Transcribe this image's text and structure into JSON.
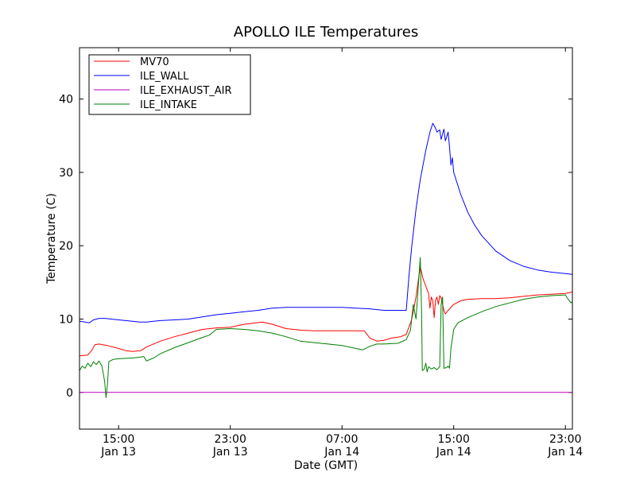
{
  "chart_data": {
    "type": "line",
    "title": "APOLLO ILE Temperatures",
    "xlabel": "Date (GMT)",
    "ylabel": "Temperature (C)",
    "x_unit": "hours since Jan 13 00:00 GMT",
    "xlim": [
      12.2,
      47.5
    ],
    "ylim": [
      -5,
      47
    ],
    "yticks": [
      0,
      10,
      20,
      30,
      40
    ],
    "xticks": [
      {
        "x": 15,
        "line1": "15:00",
        "line2": "Jan 13"
      },
      {
        "x": 23,
        "line1": "23:00",
        "line2": "Jan 13"
      },
      {
        "x": 31,
        "line1": "07:00",
        "line2": "Jan 14"
      },
      {
        "x": 39,
        "line1": "15:00",
        "line2": "Jan 14"
      },
      {
        "x": 47,
        "line1": "23:00",
        "line2": "Jan 14"
      }
    ],
    "legend_position": "top-left",
    "series": [
      {
        "name": "MV70",
        "color": "#ff0000",
        "points": [
          [
            12.2,
            5.0
          ],
          [
            12.8,
            5.1
          ],
          [
            13.1,
            5.8
          ],
          [
            13.3,
            6.5
          ],
          [
            13.6,
            6.6
          ],
          [
            14.2,
            6.4
          ],
          [
            15.0,
            6.0
          ],
          [
            15.5,
            5.7
          ],
          [
            16.0,
            5.6
          ],
          [
            16.6,
            5.7
          ],
          [
            17.0,
            6.2
          ],
          [
            18.0,
            7.0
          ],
          [
            19.0,
            7.6
          ],
          [
            20.0,
            8.1
          ],
          [
            21.0,
            8.6
          ],
          [
            22.0,
            8.8
          ],
          [
            23.0,
            8.9
          ],
          [
            24.0,
            9.3
          ],
          [
            25.3,
            9.6
          ],
          [
            26.0,
            9.3
          ],
          [
            27.0,
            8.7
          ],
          [
            28.0,
            8.5
          ],
          [
            29.0,
            8.4
          ],
          [
            30.0,
            8.4
          ],
          [
            31.0,
            8.4
          ],
          [
            32.0,
            8.4
          ],
          [
            32.6,
            8.4
          ],
          [
            33.0,
            7.4
          ],
          [
            33.5,
            7.0
          ],
          [
            34.0,
            7.1
          ],
          [
            34.5,
            7.4
          ],
          [
            35.2,
            7.6
          ],
          [
            35.6,
            7.9
          ],
          [
            36.0,
            10.0
          ],
          [
            36.3,
            13.0
          ],
          [
            36.6,
            17.2
          ],
          [
            36.8,
            15.5
          ],
          [
            37.0,
            14.5
          ],
          [
            37.2,
            13.5
          ],
          [
            37.3,
            11.5
          ],
          [
            37.4,
            13.0
          ],
          [
            37.5,
            12.5
          ],
          [
            37.6,
            10.2
          ],
          [
            37.7,
            12.6
          ],
          [
            37.8,
            13.0
          ],
          [
            37.9,
            12.0
          ],
          [
            38.0,
            13.2
          ],
          [
            38.1,
            12.9
          ],
          [
            38.3,
            11.2
          ],
          [
            38.4,
            10.7
          ],
          [
            38.6,
            11.2
          ],
          [
            39.0,
            12.0
          ],
          [
            39.5,
            12.5
          ],
          [
            40.0,
            12.7
          ],
          [
            41.0,
            12.8
          ],
          [
            42.0,
            12.8
          ],
          [
            43.0,
            12.9
          ],
          [
            44.0,
            13.1
          ],
          [
            45.0,
            13.3
          ],
          [
            46.0,
            13.4
          ],
          [
            47.0,
            13.5
          ],
          [
            47.5,
            13.7
          ]
        ]
      },
      {
        "name": "ILE_WALL",
        "color": "#0000ff",
        "points": [
          [
            12.2,
            9.7
          ],
          [
            12.6,
            9.6
          ],
          [
            12.9,
            9.5
          ],
          [
            13.2,
            9.9
          ],
          [
            13.6,
            10.1
          ],
          [
            14.0,
            10.1
          ],
          [
            15.0,
            9.9
          ],
          [
            16.0,
            9.7
          ],
          [
            16.5,
            9.6
          ],
          [
            17.0,
            9.6
          ],
          [
            17.5,
            9.7
          ],
          [
            18.0,
            9.8
          ],
          [
            19.0,
            9.9
          ],
          [
            20.0,
            10.0
          ],
          [
            21.0,
            10.3
          ],
          [
            22.0,
            10.6
          ],
          [
            23.0,
            10.8
          ],
          [
            24.0,
            11.0
          ],
          [
            25.0,
            11.2
          ],
          [
            26.0,
            11.5
          ],
          [
            27.0,
            11.6
          ],
          [
            28.0,
            11.6
          ],
          [
            30.0,
            11.6
          ],
          [
            31.0,
            11.6
          ],
          [
            32.0,
            11.5
          ],
          [
            33.0,
            11.4
          ],
          [
            34.0,
            11.2
          ],
          [
            35.0,
            11.2
          ],
          [
            35.6,
            11.2
          ],
          [
            35.8,
            16.0
          ],
          [
            36.0,
            20.0
          ],
          [
            36.3,
            25.0
          ],
          [
            36.6,
            29.0
          ],
          [
            37.0,
            33.0
          ],
          [
            37.3,
            35.5
          ],
          [
            37.5,
            36.7
          ],
          [
            37.7,
            36.0
          ],
          [
            37.8,
            35.5
          ],
          [
            38.0,
            35.8
          ],
          [
            38.1,
            34.5
          ],
          [
            38.3,
            35.9
          ],
          [
            38.4,
            34.3
          ],
          [
            38.6,
            35.5
          ],
          [
            38.7,
            33.5
          ],
          [
            38.8,
            31.0
          ],
          [
            38.9,
            32.0
          ],
          [
            39.0,
            30.0
          ],
          [
            39.5,
            27.0
          ],
          [
            40.0,
            24.6
          ],
          [
            40.5,
            22.8
          ],
          [
            41.0,
            21.4
          ],
          [
            42.0,
            19.3
          ],
          [
            43.0,
            18.0
          ],
          [
            44.0,
            17.2
          ],
          [
            45.0,
            16.7
          ],
          [
            46.0,
            16.4
          ],
          [
            47.0,
            16.2
          ],
          [
            47.5,
            16.1
          ]
        ]
      },
      {
        "name": "ILE_EXHAUST_AIR",
        "color": "#bf00bf",
        "points": [
          [
            12.2,
            0.0
          ],
          [
            47.5,
            0.0
          ]
        ]
      },
      {
        "name": "ILE_INTAKE",
        "color": "#008000",
        "points": [
          [
            12.2,
            3.0
          ],
          [
            12.4,
            3.6
          ],
          [
            12.6,
            3.3
          ],
          [
            12.8,
            4.0
          ],
          [
            13.0,
            3.5
          ],
          [
            13.2,
            4.2
          ],
          [
            13.4,
            3.8
          ],
          [
            13.6,
            4.3
          ],
          [
            13.8,
            3.6
          ],
          [
            13.9,
            2.6
          ],
          [
            14.0,
            1.5
          ],
          [
            14.1,
            -0.7
          ],
          [
            14.2,
            1.0
          ],
          [
            14.3,
            4.2
          ],
          [
            14.6,
            4.5
          ],
          [
            15.0,
            4.6
          ],
          [
            16.0,
            4.7
          ],
          [
            16.5,
            4.8
          ],
          [
            16.8,
            4.9
          ],
          [
            17.0,
            4.3
          ],
          [
            17.5,
            4.7
          ],
          [
            18.0,
            5.3
          ],
          [
            19.0,
            6.1
          ],
          [
            20.0,
            6.8
          ],
          [
            21.0,
            7.5
          ],
          [
            21.5,
            7.8
          ],
          [
            22.0,
            8.6
          ],
          [
            23.0,
            8.7
          ],
          [
            24.0,
            8.6
          ],
          [
            24.5,
            8.5
          ],
          [
            25.0,
            8.4
          ],
          [
            26.0,
            8.1
          ],
          [
            27.0,
            7.6
          ],
          [
            28.0,
            7.0
          ],
          [
            29.0,
            6.8
          ],
          [
            30.0,
            6.6
          ],
          [
            31.0,
            6.4
          ],
          [
            32.0,
            6.0
          ],
          [
            32.5,
            5.8
          ],
          [
            33.0,
            6.3
          ],
          [
            33.5,
            6.6
          ],
          [
            34.0,
            6.6
          ],
          [
            35.0,
            6.7
          ],
          [
            35.6,
            7.2
          ],
          [
            35.9,
            8.5
          ],
          [
            36.1,
            12.0
          ],
          [
            36.3,
            10.0
          ],
          [
            36.5,
            15.5
          ],
          [
            36.6,
            18.4
          ],
          [
            36.7,
            11.0
          ],
          [
            36.75,
            3.0
          ],
          [
            36.9,
            3.2
          ],
          [
            37.0,
            4.0
          ],
          [
            37.1,
            2.8
          ],
          [
            37.2,
            3.5
          ],
          [
            37.4,
            3.2
          ],
          [
            37.6,
            3.4
          ],
          [
            37.8,
            3.1
          ],
          [
            38.0,
            3.5
          ],
          [
            38.1,
            12.0
          ],
          [
            38.2,
            13.0
          ],
          [
            38.3,
            3.3
          ],
          [
            38.5,
            3.4
          ],
          [
            38.6,
            3.6
          ],
          [
            38.7,
            3.3
          ],
          [
            38.8,
            6.0
          ],
          [
            39.0,
            8.6
          ],
          [
            39.3,
            9.5
          ],
          [
            39.5,
            9.7
          ],
          [
            40.0,
            10.2
          ],
          [
            41.0,
            11.0
          ],
          [
            42.0,
            11.7
          ],
          [
            43.0,
            12.2
          ],
          [
            44.0,
            12.7
          ],
          [
            45.0,
            13.0
          ],
          [
            46.0,
            13.2
          ],
          [
            47.0,
            13.3
          ],
          [
            47.2,
            12.7
          ],
          [
            47.4,
            12.2
          ],
          [
            47.5,
            12.4
          ]
        ]
      }
    ]
  }
}
